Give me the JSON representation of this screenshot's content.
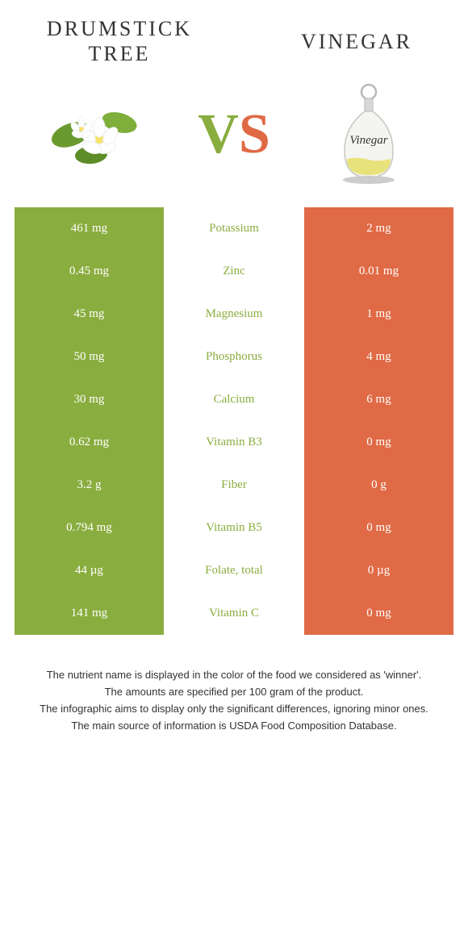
{
  "colors": {
    "green": "#8aad3f",
    "orange": "#e06a45",
    "text": "#333333",
    "white": "#ffffff"
  },
  "header": {
    "left_title": "DRUMSTICK TREE",
    "right_title": "VINEGAR",
    "vs_v": "V",
    "vs_s": "S"
  },
  "rows": [
    {
      "left": "461 mg",
      "label": "Potassium",
      "right": "2 mg",
      "winner": "left"
    },
    {
      "left": "0.45 mg",
      "label": "Zinc",
      "right": "0.01 mg",
      "winner": "left"
    },
    {
      "left": "45 mg",
      "label": "Magnesium",
      "right": "1 mg",
      "winner": "left"
    },
    {
      "left": "50 mg",
      "label": "Phosphorus",
      "right": "4 mg",
      "winner": "left"
    },
    {
      "left": "30 mg",
      "label": "Calcium",
      "right": "6 mg",
      "winner": "left"
    },
    {
      "left": "0.62 mg",
      "label": "Vitamin B3",
      "right": "0 mg",
      "winner": "left"
    },
    {
      "left": "3.2 g",
      "label": "Fiber",
      "right": "0 g",
      "winner": "left"
    },
    {
      "left": "0.794 mg",
      "label": "Vitamin B5",
      "right": "0 mg",
      "winner": "left"
    },
    {
      "left": "44 µg",
      "label": "Folate, total",
      "right": "0 µg",
      "winner": "left"
    },
    {
      "left": "141 mg",
      "label": "Vitamin C",
      "right": "0 mg",
      "winner": "left"
    }
  ],
  "footer": {
    "line1": "The nutrient name is displayed in the color of the food we considered as 'winner'.",
    "line2": "The amounts are specified per 100 gram of the product.",
    "line3": "The infographic aims to display only the significant differences, ignoring minor ones.",
    "line4": "The main source of information is USDA Food Composition Database."
  }
}
